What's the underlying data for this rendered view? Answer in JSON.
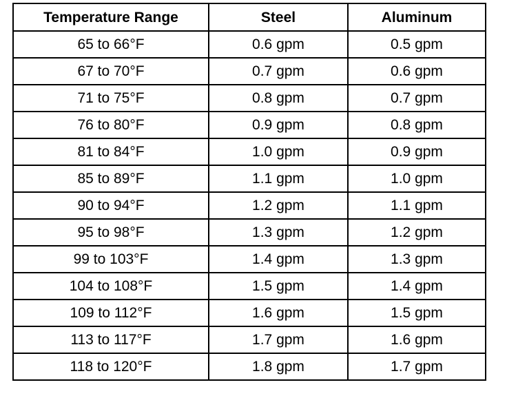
{
  "table": {
    "headers": [
      "Temperature Range",
      "Steel",
      "Aluminum"
    ],
    "rows": [
      [
        "65 to 66°F",
        "0.6 gpm",
        "0.5 gpm"
      ],
      [
        "67 to 70°F",
        "0.7 gpm",
        "0.6 gpm"
      ],
      [
        "71 to 75°F",
        "0.8 gpm",
        "0.7 gpm"
      ],
      [
        "76 to 80°F",
        "0.9 gpm",
        "0.8 gpm"
      ],
      [
        "81 to 84°F",
        "1.0 gpm",
        "0.9 gpm"
      ],
      [
        "85 to 89°F",
        "1.1 gpm",
        "1.0 gpm"
      ],
      [
        "90 to 94°F",
        "1.2 gpm",
        "1.1 gpm"
      ],
      [
        "95 to 98°F",
        "1.3 gpm",
        "1.2 gpm"
      ],
      [
        "99 to 103°F",
        "1.4 gpm",
        "1.3 gpm"
      ],
      [
        "104 to 108°F",
        "1.5 gpm",
        "1.4 gpm"
      ],
      [
        "109 to 112°F",
        "1.6 gpm",
        "1.5 gpm"
      ],
      [
        "113 to 117°F",
        "1.7 gpm",
        "1.6 gpm"
      ],
      [
        "118 to 120°F",
        "1.8 gpm",
        "1.7 gpm"
      ]
    ]
  }
}
